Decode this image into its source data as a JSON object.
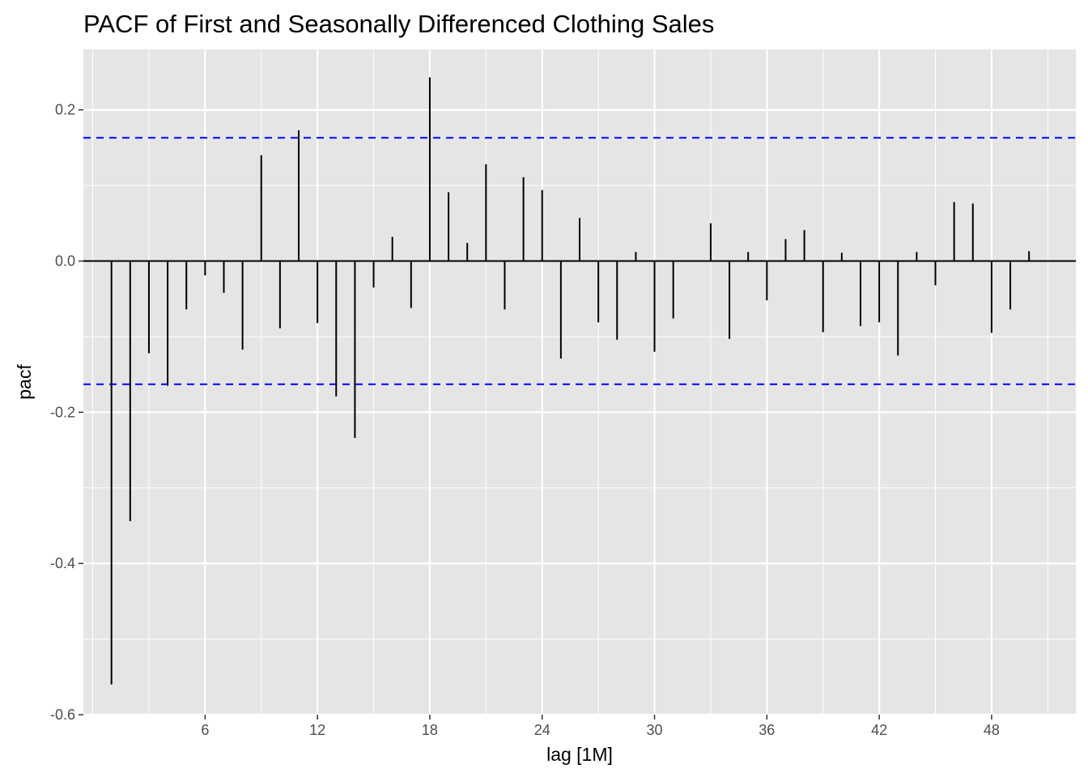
{
  "chart_data": {
    "type": "bar",
    "title": "PACF of First and Seasonally Differenced Clothing Sales",
    "xlabel": "lag [1M]",
    "ylabel": "pacf",
    "xlim": [
      -0.5,
      52.5
    ],
    "ylim": [
      -0.6,
      0.28
    ],
    "x_ticks": [
      6,
      12,
      18,
      24,
      30,
      36,
      42,
      48
    ],
    "x_tick_labels": [
      "6",
      "12",
      "18",
      "24",
      "30",
      "36",
      "42",
      "48"
    ],
    "y_ticks": [
      -0.6,
      -0.4,
      -0.2,
      0.0,
      0.2
    ],
    "y_tick_labels": [
      "-0.6",
      "-0.4",
      "-0.2",
      "0.0",
      "0.2"
    ],
    "grid": true,
    "confidence_bound": 0.163,
    "colors": {
      "panel": "#e5e5e5",
      "grid": "#ffffff",
      "bars": "#000000",
      "bounds": "#0000ff"
    },
    "lags": [
      1,
      2,
      3,
      4,
      5,
      6,
      7,
      8,
      9,
      10,
      11,
      12,
      13,
      14,
      15,
      16,
      17,
      18,
      19,
      20,
      21,
      22,
      23,
      24,
      25,
      26,
      27,
      28,
      29,
      30,
      31,
      32,
      33,
      34,
      35,
      36,
      37,
      38,
      39,
      40,
      41,
      42,
      43,
      44,
      45,
      46,
      47,
      48,
      49,
      50
    ],
    "values": [
      -0.56,
      -0.344,
      -0.122,
      -0.165,
      -0.064,
      -0.019,
      -0.042,
      -0.117,
      0.14,
      -0.089,
      0.173,
      -0.082,
      -0.179,
      -0.234,
      -0.035,
      0.032,
      -0.062,
      0.243,
      0.091,
      0.024,
      0.128,
      -0.064,
      0.111,
      0.094,
      -0.129,
      0.057,
      -0.081,
      -0.104,
      0.012,
      -0.12,
      -0.076,
      0.0,
      0.05,
      -0.103,
      0.012,
      -0.052,
      0.029,
      0.041,
      -0.094,
      0.011,
      -0.086,
      -0.081,
      -0.125,
      0.012,
      -0.032,
      0.078,
      0.076,
      -0.095,
      -0.064,
      0.013
    ]
  }
}
